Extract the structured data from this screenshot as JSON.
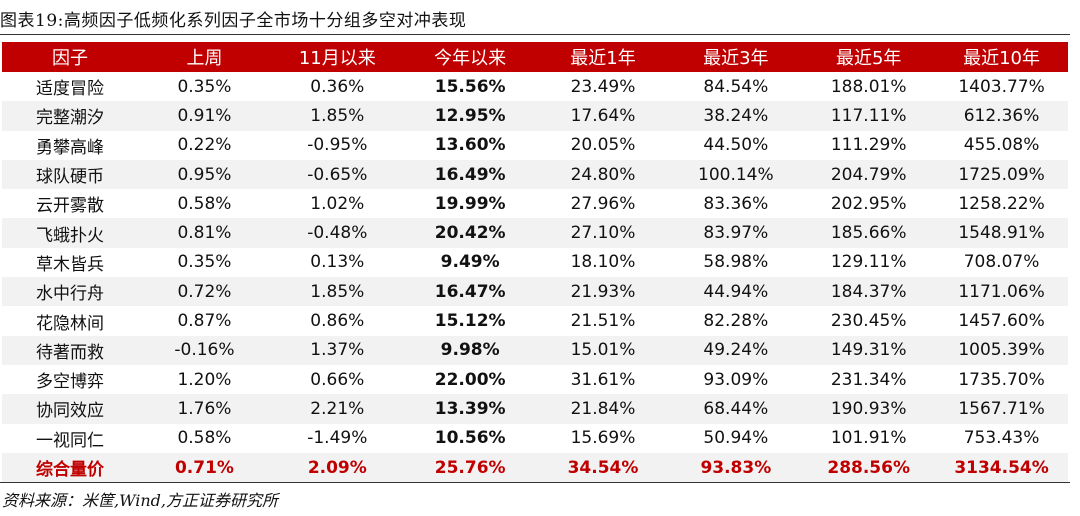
{
  "title": "图表19:高频因子低频化系列因子全市场十分组多空对冲表现",
  "table": {
    "headers": [
      "因子",
      "上周",
      "11月以来",
      "今年以来",
      "最近1年",
      "最近3年",
      "最近5年",
      "最近10年"
    ],
    "rows": [
      [
        "适度冒险",
        "0.35%",
        "0.36%",
        "15.56%",
        "23.49%",
        "84.54%",
        "188.01%",
        "1403.77%"
      ],
      [
        "完整潮汐",
        "0.91%",
        "1.85%",
        "12.95%",
        "17.64%",
        "38.24%",
        "117.11%",
        "612.36%"
      ],
      [
        "勇攀高峰",
        "0.22%",
        "-0.95%",
        "13.60%",
        "20.05%",
        "44.50%",
        "111.29%",
        "455.08%"
      ],
      [
        "球队硬币",
        "0.95%",
        "-0.65%",
        "16.49%",
        "24.80%",
        "100.14%",
        "204.79%",
        "1725.09%"
      ],
      [
        "云开雾散",
        "0.58%",
        "1.02%",
        "19.99%",
        "27.96%",
        "83.36%",
        "202.95%",
        "1258.22%"
      ],
      [
        "飞蛾扑火",
        "0.81%",
        "-0.48%",
        "20.42%",
        "27.10%",
        "83.97%",
        "185.66%",
        "1548.91%"
      ],
      [
        "草木皆兵",
        "0.35%",
        "0.13%",
        "9.49%",
        "18.10%",
        "58.98%",
        "129.11%",
        "708.07%"
      ],
      [
        "水中行舟",
        "0.72%",
        "1.85%",
        "16.47%",
        "21.93%",
        "44.94%",
        "184.37%",
        "1171.06%"
      ],
      [
        "花隐林间",
        "0.87%",
        "0.86%",
        "15.12%",
        "21.51%",
        "82.28%",
        "230.45%",
        "1457.60%"
      ],
      [
        "待著而救",
        "-0.16%",
        "1.37%",
        "9.98%",
        "15.01%",
        "49.24%",
        "149.31%",
        "1005.39%"
      ],
      [
        "多空博弈",
        "1.20%",
        "0.66%",
        "22.00%",
        "31.61%",
        "93.09%",
        "231.34%",
        "1735.70%"
      ],
      [
        "协同效应",
        "1.76%",
        "2.21%",
        "13.39%",
        "21.84%",
        "68.44%",
        "190.93%",
        "1567.71%"
      ],
      [
        "一视同仁",
        "0.58%",
        "-1.49%",
        "10.56%",
        "15.69%",
        "50.94%",
        "101.91%",
        "753.43%"
      ]
    ],
    "summary": [
      "综合量价",
      "0.71%",
      "2.09%",
      "25.76%",
      "34.54%",
      "93.83%",
      "288.56%",
      "3134.54%"
    ]
  },
  "source": "资料来源：米筐,Wind,方正证券研究所",
  "colors": {
    "header_bg": "#c00000",
    "header_text": "#ffffff",
    "summary_text": "#c00000",
    "zebra_bg": "#f2f2f2"
  }
}
